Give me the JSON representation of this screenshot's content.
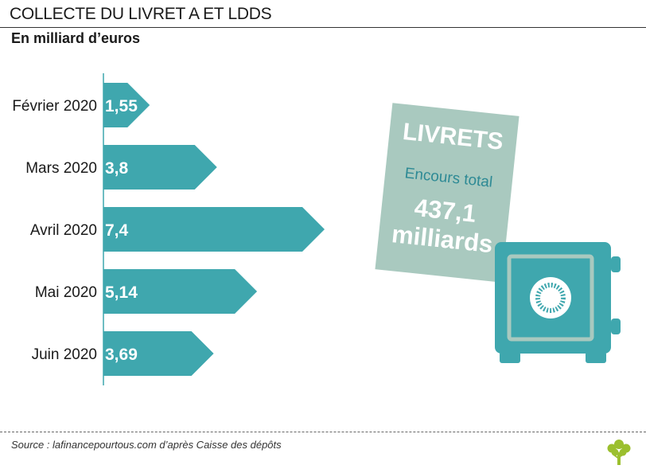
{
  "title": "COLLECTE DU LIVRET A ET LDDS",
  "subtitle": "En milliard d’euros",
  "chart_data": {
    "type": "bar",
    "orientation": "horizontal",
    "categories": [
      "Février 2020",
      "Mars 2020",
      "Avril 2020",
      "Mai 2020",
      "Juin 2020"
    ],
    "values": [
      1.55,
      3.8,
      7.4,
      5.14,
      3.69
    ],
    "value_labels": [
      "1,55",
      "3,8",
      "7,4",
      "5,14",
      "3,69"
    ],
    "xlim": [
      0,
      7.4
    ],
    "grid": false,
    "legend": "none",
    "bar_color": "#3fa7ae"
  },
  "card": {
    "title": "LIVRETS",
    "sub": "Encours total",
    "value": "437,1",
    "unit": "milliards"
  },
  "safe": {
    "icon": "safe-icon",
    "color": "#3fa7ae"
  },
  "source": "Source : lafinancepourtous.com d’après Caisse des dépôts",
  "logo": {
    "icon": "tree-logo-icon",
    "color": "#9bbf2e"
  }
}
